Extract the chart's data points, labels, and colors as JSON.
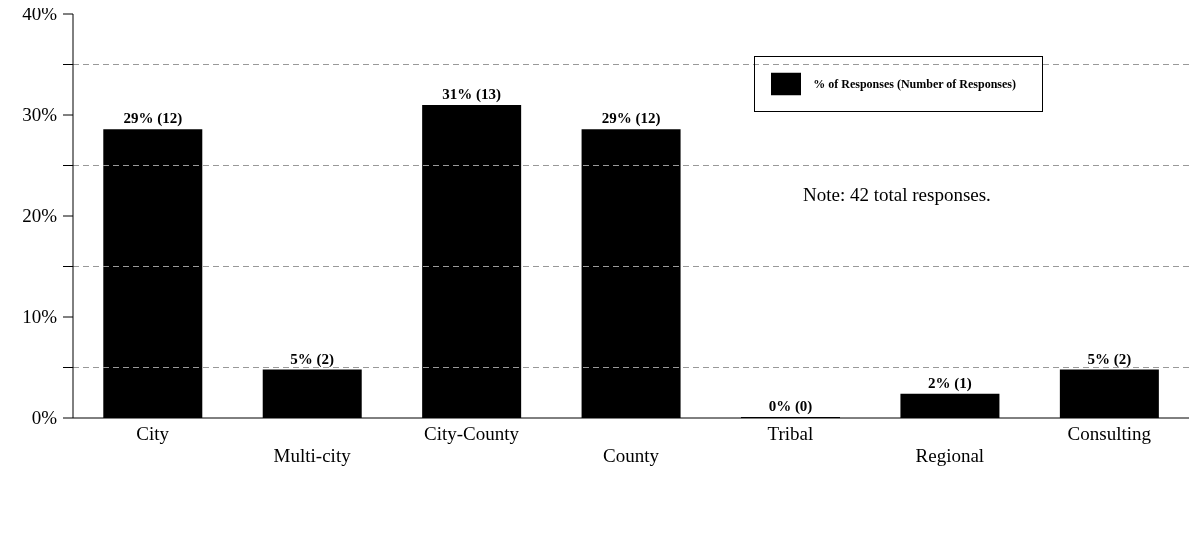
{
  "chart_data": {
    "type": "bar",
    "categories": [
      "City",
      "Multi-city",
      "City-County",
      "County",
      "Tribal",
      "Regional",
      "Consulting"
    ],
    "series": [
      {
        "name": "% of Responses (Number of Responses)",
        "color": "#000000",
        "values": [
          28.6,
          4.8,
          31.0,
          28.6,
          0,
          2.4,
          4.8
        ],
        "value_labels": [
          "29% (12)",
          "5% (2)",
          "31% (13)",
          "29% (12)",
          "0% (0)",
          "2% (1)",
          "5% (2)"
        ]
      }
    ],
    "ylim": [
      0,
      40
    ],
    "yticks": [
      {
        "value": 0,
        "label": "0%"
      },
      {
        "value": 5,
        "label": null
      },
      {
        "value": 10,
        "label": "10%"
      },
      {
        "value": 15,
        "label": null
      },
      {
        "value": 20,
        "label": "20%"
      },
      {
        "value": 25,
        "label": null
      },
      {
        "value": 30,
        "label": "30%"
      },
      {
        "value": 35,
        "label": null
      },
      {
        "value": 40,
        "label": "40%"
      }
    ],
    "grid": "y",
    "legend": "top right",
    "annotations": [
      "Note: 42 total responses."
    ]
  }
}
